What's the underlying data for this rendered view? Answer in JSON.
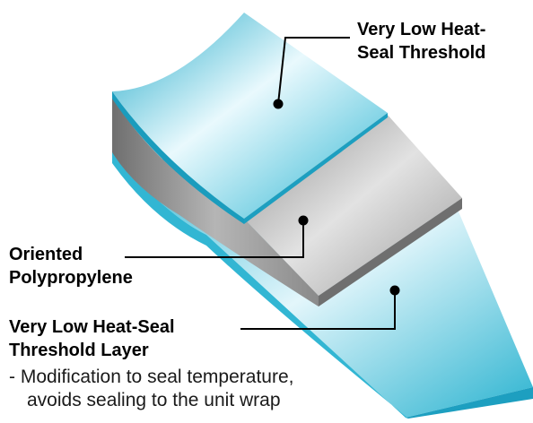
{
  "labels": {
    "top_layer": [
      "Very Low Heat-",
      "Seal Threshold"
    ],
    "middle_layer": [
      "Oriented",
      "Polypropylene"
    ],
    "bottom_layer": [
      "Very Low Heat-Seal",
      "Threshold Layer"
    ]
  },
  "description": [
    "- Modification to seal temperature,",
    "avoids sealing to the unit wrap"
  ],
  "colors": {
    "film_cyan": "#35bfd8",
    "film_highlight": "#e8f8fc",
    "core_gray": "#a9a9a9",
    "leader_line": "#000000"
  }
}
